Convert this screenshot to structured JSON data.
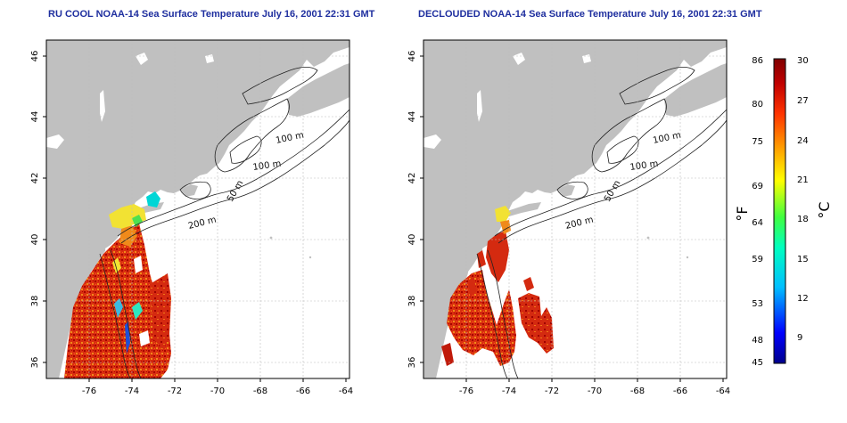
{
  "maps": [
    {
      "title": "RU COOL NOAA-14 Sea Surface Temperature July 16, 2001 22:31 GMT",
      "x_ticks": [
        "-76",
        "-74",
        "-72",
        "-70",
        "-68",
        "-66",
        "-64"
      ],
      "y_ticks": [
        "36",
        "38",
        "40",
        "42",
        "44",
        "46"
      ],
      "contour_labels": [
        "100 m",
        "100 m",
        "50 m",
        "200 m"
      ]
    },
    {
      "title": "DECLOUDED NOAA-14 Sea Surface Temperature July 16, 2001 22:31 GMT",
      "x_ticks": [
        "-76",
        "-74",
        "-72",
        "-70",
        "-68",
        "-66",
        "-64"
      ],
      "y_ticks": [
        "36",
        "38",
        "40",
        "42",
        "44",
        "46"
      ],
      "contour_labels": [
        "100 m",
        "100 m",
        "50 m",
        "200 m"
      ]
    }
  ],
  "colorbar": {
    "fahrenheit_label": "°F",
    "celsius_label": "°C",
    "fahrenheit_ticks": [
      "86",
      "80",
      "75",
      "69",
      "64",
      "59",
      "53",
      "48",
      "45"
    ],
    "celsius_ticks": [
      "30",
      "27",
      "24",
      "21",
      "18",
      "15",
      "12",
      "9"
    ],
    "colors": [
      "#00008b",
      "#0000ff",
      "#00bfff",
      "#00ffbf",
      "#40ff40",
      "#ffff00",
      "#ffa500",
      "#ff3300",
      "#b00000",
      "#800000"
    ]
  },
  "colors": {
    "land": "#c0c0c0",
    "ocean": "#ffffff",
    "title": "#1f2f9f",
    "sst_warm": "#d93010",
    "sst_hot": "#a80000",
    "sst_mid": "#f08a1a",
    "sst_cool": "#f2e233"
  }
}
